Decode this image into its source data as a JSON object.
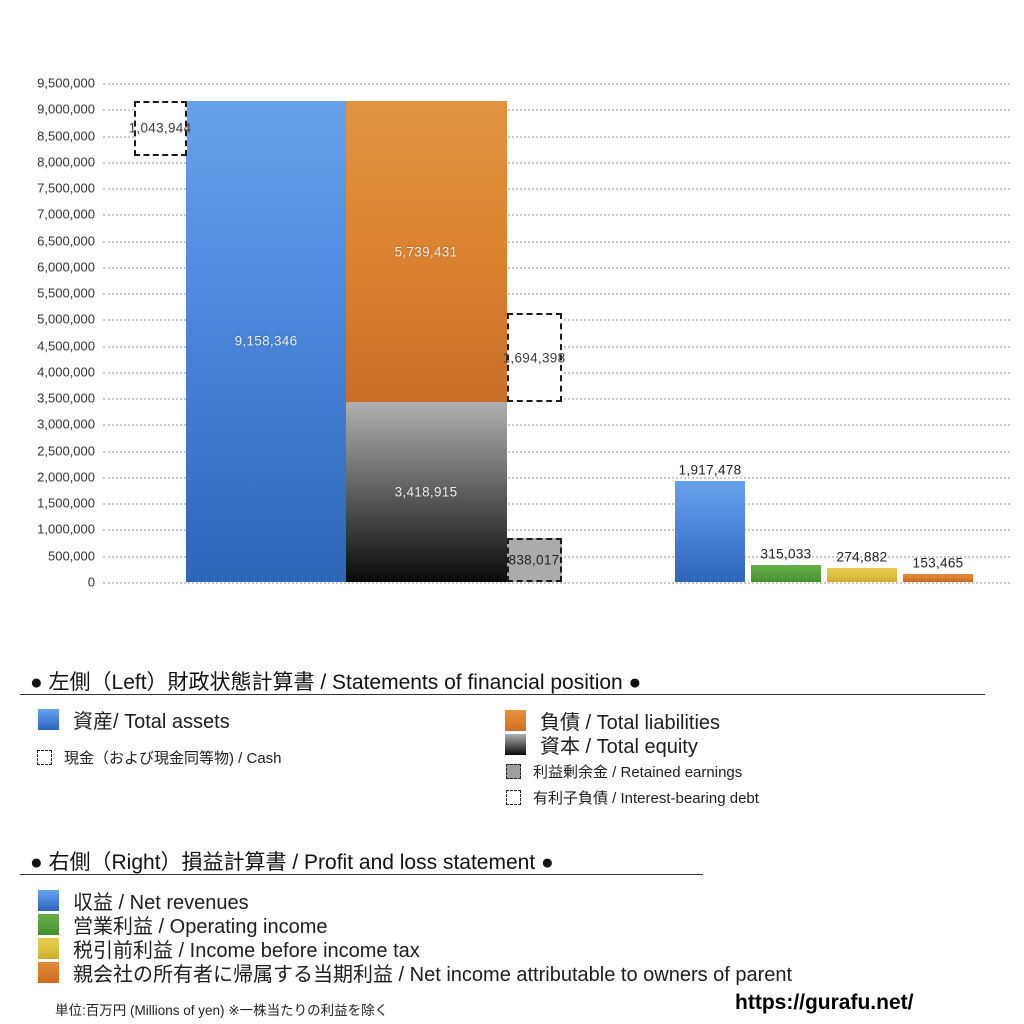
{
  "chart_data": {
    "type": "bar",
    "title": "",
    "ylabel": "",
    "ylim": [
      0,
      9500000
    ],
    "ytick_step": 500000,
    "grid": true,
    "unit_note": "単位:百万円 (Millions of yen) ※一株当たりの利益を除く",
    "balance_sheet": {
      "total_assets": {
        "label": "資産/ Total assets",
        "value": 9158346,
        "color": "#4c87dc"
      },
      "total_liabilities": {
        "label": "負債 / Total liabilities",
        "value": 5739431,
        "color": "#da812f"
      },
      "total_equity": {
        "label": "資本 / Total equity",
        "value": 3418915,
        "color": "#6f6f6f"
      },
      "cash": {
        "label": "現金（および現金同等物) / Cash",
        "value": 1043944,
        "color": "#ffffff"
      },
      "interest_bearing_debt": {
        "label": "有利子負債 / Interest-bearing debt",
        "value": 1694398,
        "color": "#ffffff"
      },
      "retained_earnings": {
        "label": "利益剰余金 / Retained earnings",
        "value": 838017,
        "color": "#ababab"
      }
    },
    "profit_and_loss": [
      {
        "label": "収益 / Net revenues",
        "value": 1917478,
        "color": "#4c87dc"
      },
      {
        "label": "営業利益 / Operating income",
        "value": 315033,
        "color": "#53a039"
      },
      {
        "label": "税引前利益 / Income before income tax",
        "value": 274882,
        "color": "#dec13f"
      },
      {
        "label": "親会社の所有者に帰属する当期利益 / Net income attributable to owners of parent",
        "value": 153465,
        "color": "#d87a2c"
      }
    ]
  },
  "legend_bs": {
    "header": "● 左側（Left）財政状態計算書 / Statements of financial position ●",
    "assets_label": "資産/ Total assets",
    "cash_label": "現金（および現金同等物) / Cash",
    "liabilities_label": "負債 / Total liabilities",
    "equity_label": "資本 / Total equity",
    "retained_label": "利益剰余金 / Retained earnings",
    "debt_label": "有利子負債 / Interest-bearing debt"
  },
  "legend_pl": {
    "header": "● 右側（Right）損益計算書 / Profit and loss statement ●",
    "revenues_label": "収益 / Net revenues",
    "operating_label": "営業利益 / Operating income",
    "pretax_label": "税引前利益 / Income before income tax",
    "net_income_label": "親会社の所有者に帰属する当期利益 / Net income attributable to owners of parent"
  },
  "footer": {
    "unit_note": "単位:百万円 (Millions of yen) ※一株当たりの利益を除く",
    "url": "https://gurafu.net/"
  }
}
